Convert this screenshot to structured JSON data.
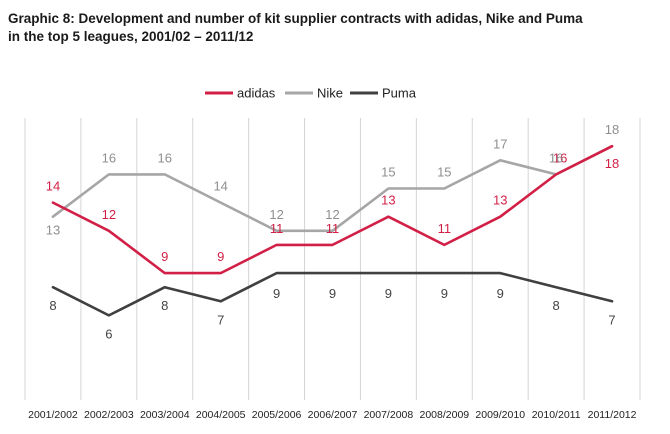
{
  "chart_data": {
    "type": "line",
    "title_line1": "Graphic 8: Development and number of kit supplier contracts with adidas, Nike and Puma",
    "title_line2": "in the top 5 leagues, 2001/02 – 2011/12",
    "categories": [
      "2001/2002",
      "2002/2003",
      "2003/2004",
      "2004/2005",
      "2005/2006",
      "2006/2007",
      "2007/2008",
      "2008/2009",
      "2009/2010",
      "2010/2011",
      "2011/2012"
    ],
    "series": [
      {
        "name": "adidas",
        "color": "#d21f46",
        "values": [
          14,
          12,
          9,
          9,
          11,
          11,
          13,
          11,
          13,
          16,
          18
        ]
      },
      {
        "name": "Nike",
        "color": "#a6a6a6",
        "values": [
          13,
          16,
          16,
          14,
          12,
          12,
          15,
          15,
          17,
          16,
          18
        ]
      },
      {
        "name": "Puma",
        "color": "#404040",
        "values": [
          8,
          6,
          8,
          7,
          9,
          9,
          9,
          9,
          9,
          8,
          7
        ]
      }
    ],
    "ylim": [
      0,
      20
    ],
    "grid": "vertical",
    "legend_position": "top-center",
    "xlabel": "",
    "ylabel": ""
  }
}
